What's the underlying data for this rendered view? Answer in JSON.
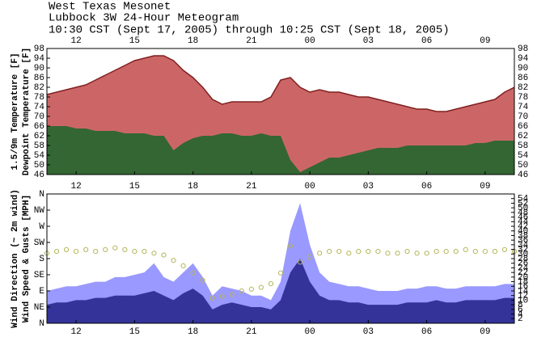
{
  "header": {
    "network": "West Texas Mesonet",
    "title": "Lubbock 3W 24-Hour Meteogram",
    "period": "10:30 CST (Sept 17, 2005) through 10:25 CST (Sept 18, 2005)"
  },
  "chart_data": [
    {
      "type": "area",
      "x": [
        10.5,
        11,
        11.5,
        12,
        12.5,
        13,
        13.5,
        14,
        14.5,
        15,
        15.5,
        16,
        16.5,
        17,
        17.5,
        18,
        18.5,
        19,
        19.5,
        20,
        20.5,
        21,
        21.5,
        22,
        22.5,
        23,
        23.5,
        24,
        24.5,
        25,
        25.5,
        26,
        26.5,
        27,
        27.5,
        28,
        28.5,
        29,
        29.5,
        30,
        30.5,
        31,
        31.5,
        32,
        32.5,
        33,
        33.5,
        34,
        34.5
      ],
      "xlim": [
        10.5,
        34.5
      ],
      "xticks": [
        12,
        15,
        18,
        21,
        {
          "value": 24,
          "label": "00"
        },
        {
          "value": 27,
          "label": "03"
        },
        {
          "value": 30,
          "label": "06"
        },
        {
          "value": 33,
          "label": "09"
        }
      ],
      "ylim": [
        46,
        98
      ],
      "yticks": [
        46,
        50,
        54,
        58,
        62,
        66,
        70,
        74,
        78,
        82,
        86,
        90,
        94,
        98
      ],
      "series": [
        {
          "name": "1.5/9m Temperature [F]",
          "type": "area",
          "color": "#cc6666",
          "values": [
            79,
            80,
            81,
            82,
            83,
            85,
            87,
            89,
            91,
            93,
            94,
            95,
            95,
            93,
            89,
            86,
            82,
            77,
            75,
            76,
            76,
            76,
            76,
            78,
            85,
            86,
            82,
            80,
            81,
            80,
            80,
            79,
            78,
            78,
            77,
            76,
            75,
            74,
            73,
            73,
            72,
            72,
            73,
            74,
            75,
            76,
            77,
            80,
            82
          ]
        },
        {
          "name": "Dewpoint Temperature [F]",
          "type": "area",
          "color": "#336633",
          "values": [
            66,
            66,
            66,
            65,
            65,
            64,
            64,
            64,
            63,
            63,
            63,
            62,
            62,
            56,
            59,
            61,
            62,
            62,
            63,
            63,
            62,
            62,
            63,
            62,
            62,
            52,
            47,
            49,
            51,
            53,
            53,
            54,
            55,
            56,
            57,
            57,
            57,
            58,
            58,
            58,
            58,
            58,
            58,
            58,
            59,
            59,
            60,
            60,
            60
          ]
        }
      ]
    },
    {
      "type": "combo",
      "x": [
        10.5,
        11,
        11.5,
        12,
        12.5,
        13,
        13.5,
        14,
        14.5,
        15,
        15.5,
        16,
        16.5,
        17,
        17.5,
        18,
        18.5,
        19,
        19.5,
        20,
        20.5,
        21,
        21.5,
        22,
        22.5,
        23,
        23.5,
        24,
        24.5,
        25,
        25.5,
        26,
        26.5,
        27,
        27.5,
        28,
        28.5,
        29,
        29.5,
        30,
        30.5,
        31,
        31.5,
        32,
        32.5,
        33,
        33.5,
        34,
        34.5
      ],
      "xlim": [
        10.5,
        34.5
      ],
      "xticks": [
        12,
        15,
        18,
        21,
        {
          "value": 24,
          "label": "00"
        },
        {
          "value": 27,
          "label": "03"
        },
        {
          "value": 30,
          "label": "06"
        },
        {
          "value": 33,
          "label": "09"
        }
      ],
      "ylim": [
        0,
        360
      ],
      "yticks": [
        {
          "value": 0,
          "label": "N"
        },
        {
          "value": 45,
          "label": "NE"
        },
        {
          "value": 90,
          "label": "E"
        },
        {
          "value": 135,
          "label": "SE"
        },
        {
          "value": 180,
          "label": "S"
        },
        {
          "value": 225,
          "label": "SW"
        },
        {
          "value": 270,
          "label": "W"
        },
        {
          "value": 315,
          "label": "NW"
        },
        {
          "value": 360,
          "label": "N"
        }
      ],
      "y2lim": [
        0,
        56
      ],
      "y2ticks": [
        2,
        4,
        6,
        8,
        10,
        12,
        14,
        16,
        18,
        20,
        22,
        24,
        26,
        28,
        30,
        32,
        34,
        36,
        38,
        40,
        42,
        44,
        46,
        48,
        50,
        52,
        54
      ],
      "y2label": "Wind Speed & Gusts [MPH]",
      "series": [
        {
          "type": "area",
          "axis": "y2",
          "color": "#9999ff",
          "values": [
            14,
            15,
            16,
            16,
            17,
            18,
            18,
            20,
            20,
            21,
            22,
            26,
            20,
            18,
            22,
            26,
            20,
            12,
            16,
            15,
            14,
            12,
            12,
            10,
            18,
            40,
            52,
            34,
            22,
            18,
            17,
            16,
            16,
            15,
            14,
            14,
            14,
            15,
            15,
            16,
            16,
            15,
            15,
            16,
            16,
            16,
            16,
            17,
            17
          ]
        },
        {
          "type": "area",
          "axis": "y2",
          "color": "#333399",
          "values": [
            8,
            9,
            9,
            10,
            10,
            11,
            11,
            12,
            12,
            12,
            13,
            14,
            12,
            10,
            13,
            15,
            12,
            6,
            8,
            9,
            8,
            7,
            7,
            6,
            10,
            22,
            28,
            18,
            12,
            10,
            10,
            9,
            9,
            8,
            8,
            8,
            8,
            9,
            9,
            9,
            10,
            9,
            9,
            10,
            10,
            10,
            10,
            11,
            11
          ]
        },
        {
          "name": "Wind Direction (~ 2m wind)",
          "type": "scatter",
          "color": "#b5b55a",
          "values": [
            195,
            200,
            205,
            200,
            205,
            200,
            205,
            210,
            205,
            200,
            200,
            195,
            190,
            175,
            160,
            140,
            120,
            70,
            75,
            80,
            90,
            95,
            100,
            110,
            140,
            215,
            170,
            185,
            195,
            200,
            200,
            195,
            200,
            200,
            200,
            195,
            195,
            200,
            195,
            195,
            200,
            200,
            200,
            205,
            200,
            200,
            200,
            205,
            200
          ]
        }
      ]
    }
  ]
}
